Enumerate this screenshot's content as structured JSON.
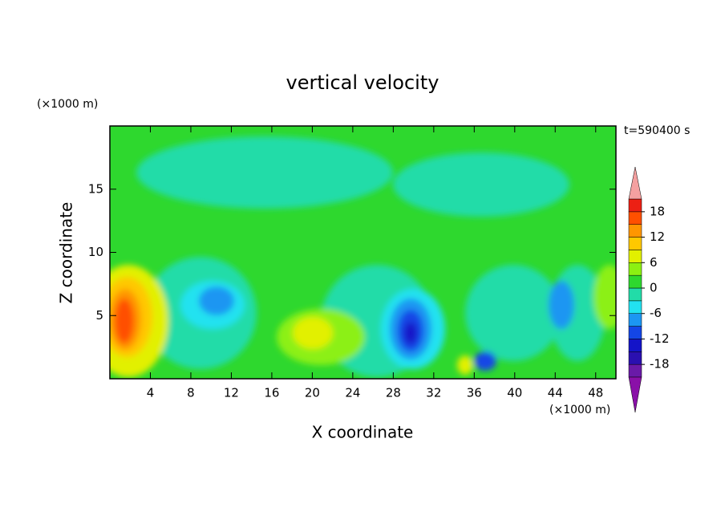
{
  "chart_data": {
    "type": "contour",
    "title": "vertical velocity",
    "x_label": "X coordinate",
    "y_label": "Z coordinate",
    "x_unit": "(×1000 m)",
    "y_unit": "(×1000 m)",
    "annotation": "t=590400 s",
    "xlim": [
      0,
      50
    ],
    "xticks": [
      4,
      8,
      12,
      16,
      20,
      24,
      28,
      32,
      36,
      40,
      44,
      48
    ],
    "ylim": [
      0,
      20
    ],
    "yticks": [
      5,
      10,
      15
    ],
    "colorbar": {
      "levels": [
        -21,
        -18,
        -15,
        -12,
        -9,
        -6,
        -3,
        0,
        3,
        6,
        9,
        12,
        15,
        18,
        21
      ],
      "colors": [
        "#6a1aa8",
        "#2a10b0",
        "#1414c8",
        "#1446e6",
        "#1c96f2",
        "#22e2f0",
        "#22dca8",
        "#2ed82e",
        "#8cf012",
        "#e2f000",
        "#ffc800",
        "#ff9600",
        "#ff5000",
        "#ec2014"
      ],
      "under_color": "#8a10a8",
      "over_color": "#f4a0a0",
      "ticks": [
        -18,
        -12,
        -6,
        0,
        6,
        12,
        18
      ]
    }
  }
}
